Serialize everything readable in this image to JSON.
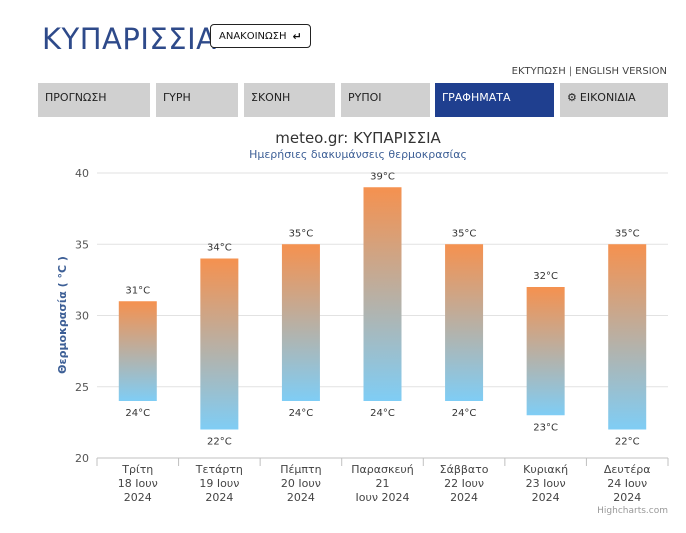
{
  "header": {
    "title": "ΚΥΠΑΡΙΣΣΙΑ",
    "announce_label": "ΑΝΑΚΟΙΝΩΣΗ",
    "announce_icon": "return-arrow-icon"
  },
  "toplinks": {
    "print": "ΕΚΤΥΠΩΣΗ",
    "separator": "|",
    "english": "ENGLISH VERSION"
  },
  "tabs": [
    {
      "label": "ΠΡΟΓΝΩΣΗ",
      "name": "tab-forecast"
    },
    {
      "label": "ΓΥΡΗ",
      "name": "tab-pollen"
    },
    {
      "label": "ΣΚΟΝΗ",
      "name": "tab-dust"
    },
    {
      "label": "ΡΥΠΟΙ",
      "name": "tab-pollutants"
    },
    {
      "label": "ΓΡΑΦΗΜΑΤΑ",
      "name": "tab-charts",
      "active": true
    },
    {
      "label": "ΕΙΚΟΝΙΔΙΑ",
      "name": "tab-widgets",
      "icon": "gear-icon"
    }
  ],
  "colors": {
    "accent": "#1f3f8f",
    "bar_top": "#f5914f",
    "bar_bottom": "#7fcdf5",
    "title": "#2e4a8a"
  },
  "chart_data": {
    "type": "bar",
    "title": "meteo.gr: ΚΥΠΑΡΙΣΣΙΑ",
    "subtitle": "Ημερήσιες διακυμάνσεις θερμοκρασίας",
    "ylabel": "Θερμοκρασία ( °C )",
    "ylim": [
      20,
      40
    ],
    "yticks": [
      "20",
      "25",
      "30",
      "35",
      "40"
    ],
    "categories": [
      [
        "Τρίτη",
        "18 Ιουν",
        "2024"
      ],
      [
        "Τετάρτη",
        "19 Ιουν",
        "2024"
      ],
      [
        "Πέμπτη",
        "20 Ιουν",
        "2024"
      ],
      [
        "Παρασκευή",
        "21",
        "Ιουν 2024"
      ],
      [
        "Σάββατο",
        "22 Ιουν",
        "2024"
      ],
      [
        "Κυριακή",
        "23 Ιουν",
        "2024"
      ],
      [
        "Δευτέρα",
        "24 Ιουν",
        "2024"
      ]
    ],
    "min": [
      24,
      22,
      24,
      24,
      24,
      23,
      22
    ],
    "max": [
      31,
      34,
      35,
      39,
      35,
      32,
      35
    ],
    "min_labels": [
      "24°C",
      "22°C",
      "24°C",
      "24°C",
      "24°C",
      "23°C",
      "22°C"
    ],
    "max_labels": [
      "31°C",
      "34°C",
      "35°C",
      "39°C",
      "35°C",
      "32°C",
      "35°C"
    ],
    "grid": true,
    "credit": "Highcharts.com"
  }
}
